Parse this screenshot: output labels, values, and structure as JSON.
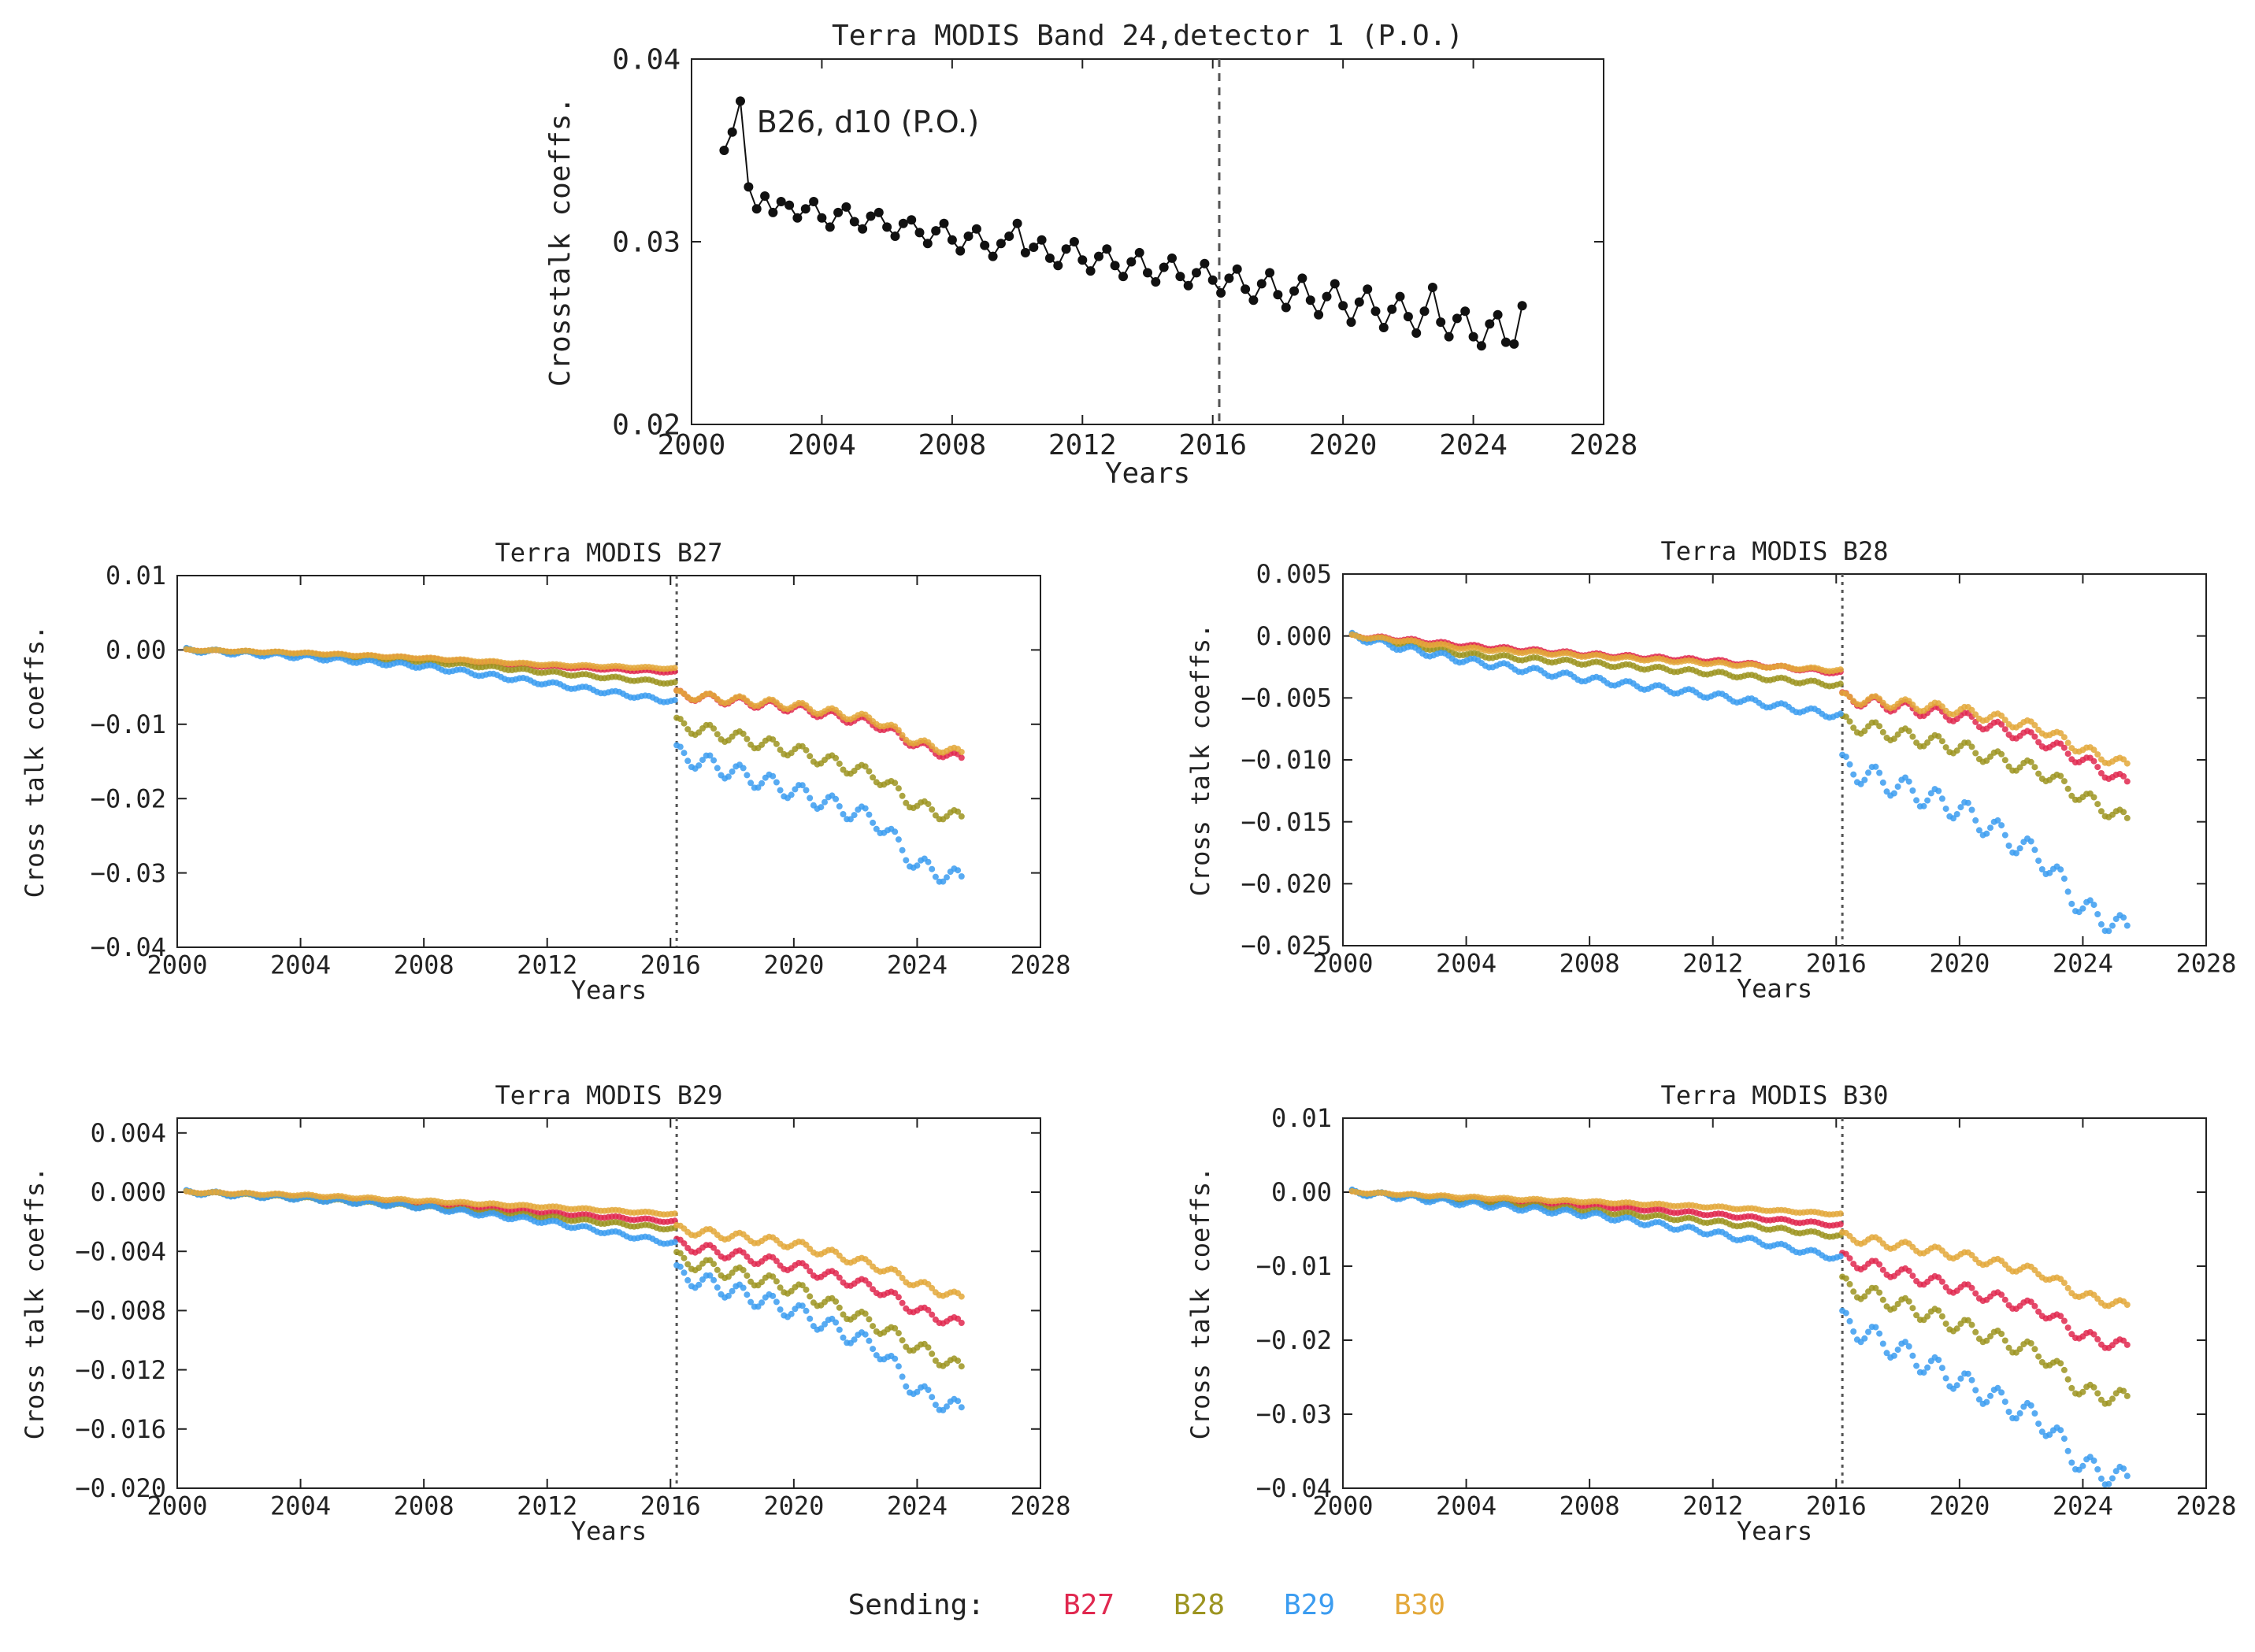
{
  "colors": {
    "B27": "#e0284f",
    "B28": "#9c9420",
    "B29": "#3b9cf0",
    "B30": "#e3a83a",
    "top_series": "#111111",
    "axis": "#222222",
    "grid": "#cfcfcf"
  },
  "legend": {
    "label": "Sending:",
    "items": [
      {
        "name": "B27",
        "color": "#e0284f"
      },
      {
        "name": "B28",
        "color": "#9c9420"
      },
      {
        "name": "B29",
        "color": "#3b9cf0"
      },
      {
        "name": "B30",
        "color": "#e3a83a"
      }
    ]
  },
  "chart_data": [
    {
      "type": "line",
      "title": "Terra MODIS Band 24,detector 1 (P.O.)",
      "xlabel": "Years",
      "ylabel": "Crosstalk coeffs.",
      "xlim": [
        2000,
        2028
      ],
      "ylim": [
        0.02,
        0.04
      ],
      "xticks": [
        "2000",
        "2004",
        "2008",
        "2012",
        "2016",
        "2020",
        "2024",
        "2028"
      ],
      "yticks": [
        "0.02",
        "0.03",
        "0.04"
      ],
      "vline": 2016.2,
      "annotation": "B26, d10 (P.O.)",
      "series": [
        {
          "name": "B26, d10 (P.O.)",
          "color": "#111111",
          "x": [
            2001.0,
            2001.25,
            2001.5,
            2001.75,
            2002.0,
            2002.25,
            2002.5,
            2002.75,
            2003.0,
            2003.25,
            2003.5,
            2003.75,
            2004.0,
            2004.25,
            2004.5,
            2004.75,
            2005.0,
            2005.25,
            2005.5,
            2005.75,
            2006.0,
            2006.25,
            2006.5,
            2006.75,
            2007.0,
            2007.25,
            2007.5,
            2007.75,
            2008.0,
            2008.25,
            2008.5,
            2008.75,
            2009.0,
            2009.25,
            2009.5,
            2009.75,
            2010.0,
            2010.25,
            2010.5,
            2010.75,
            2011.0,
            2011.25,
            2011.5,
            2011.75,
            2012.0,
            2012.25,
            2012.5,
            2012.75,
            2013.0,
            2013.25,
            2013.5,
            2013.75,
            2014.0,
            2014.25,
            2014.5,
            2014.75,
            2015.0,
            2015.25,
            2015.5,
            2015.75,
            2016.0,
            2016.25,
            2016.5,
            2016.75,
            2017.0,
            2017.25,
            2017.5,
            2017.75,
            2018.0,
            2018.25,
            2018.5,
            2018.75,
            2019.0,
            2019.25,
            2019.5,
            2019.75,
            2020.0,
            2020.25,
            2020.5,
            2020.75,
            2021.0,
            2021.25,
            2021.5,
            2021.75,
            2022.0,
            2022.25,
            2022.5,
            2022.75,
            2023.0,
            2023.25,
            2023.5,
            2023.75,
            2024.0,
            2024.25,
            2024.5,
            2024.75,
            2025.0,
            2025.25,
            2025.5
          ],
          "y": [
            0.035,
            0.036,
            0.0377,
            0.033,
            0.0318,
            0.0325,
            0.0316,
            0.0322,
            0.032,
            0.0313,
            0.0318,
            0.0322,
            0.0313,
            0.0308,
            0.0316,
            0.0319,
            0.0311,
            0.0307,
            0.0314,
            0.0316,
            0.0308,
            0.0303,
            0.031,
            0.0312,
            0.0305,
            0.0299,
            0.0306,
            0.031,
            0.0301,
            0.0295,
            0.0303,
            0.0307,
            0.0298,
            0.0292,
            0.0299,
            0.0303,
            0.031,
            0.0294,
            0.0297,
            0.0301,
            0.0291,
            0.0287,
            0.0296,
            0.03,
            0.029,
            0.0284,
            0.0292,
            0.0296,
            0.0287,
            0.0281,
            0.0289,
            0.0294,
            0.0283,
            0.0278,
            0.0286,
            0.0291,
            0.0281,
            0.0276,
            0.0283,
            0.0288,
            0.0279,
            0.0272,
            0.028,
            0.0285,
            0.0274,
            0.0268,
            0.0277,
            0.0283,
            0.0271,
            0.0264,
            0.0273,
            0.028,
            0.0268,
            0.026,
            0.027,
            0.0277,
            0.0265,
            0.0256,
            0.0267,
            0.0274,
            0.0262,
            0.0253,
            0.0263,
            0.027,
            0.0259,
            0.025,
            0.0262,
            0.0275,
            0.0256,
            0.0248,
            0.0258,
            0.0262,
            0.0248,
            0.0243,
            0.0255,
            0.026,
            0.0245,
            0.0244,
            0.0265
          ]
        }
      ]
    },
    {
      "type": "scatter",
      "title": "Terra MODIS B27",
      "xlabel": "Years",
      "ylabel": "Cross talk coeffs.",
      "xlim": [
        2000,
        2028
      ],
      "ylim": [
        -0.04,
        0.01
      ],
      "xticks": [
        "2000",
        "2004",
        "2008",
        "2012",
        "2016",
        "2020",
        "2024",
        "2028"
      ],
      "yticks": [
        "0.01",
        "0.00",
        "−0.01",
        "−0.02",
        "−0.03",
        "−0.04"
      ],
      "vline": 2016.2,
      "pre_x": [
        2000.3,
        2004,
        2008,
        2012,
        2016.2
      ],
      "post_x": [
        2016.2,
        2020,
        2022.7,
        2024,
        2025.5
      ],
      "series": [
        {
          "name": "B27",
          "color": "#e0284f",
          "pre_y": [
            0.0,
            -0.0005,
            -0.0012,
            -0.0022,
            -0.003
          ],
          "post_y": [
            -0.006,
            -0.0078,
            -0.01,
            -0.0128,
            -0.0148
          ]
        },
        {
          "name": "B28",
          "color": "#9c9420",
          "pre_y": [
            0.0,
            -0.0006,
            -0.0015,
            -0.003,
            -0.0045
          ],
          "post_y": [
            -0.01,
            -0.0135,
            -0.017,
            -0.021,
            -0.0228
          ]
        },
        {
          "name": "B29",
          "color": "#3b9cf0",
          "pre_y": [
            0.0,
            -0.0009,
            -0.0022,
            -0.0045,
            -0.007
          ],
          "post_y": [
            -0.014,
            -0.019,
            -0.023,
            -0.029,
            -0.031
          ]
        },
        {
          "name": "B30",
          "color": "#e3a83a",
          "pre_y": [
            0.0,
            -0.0004,
            -0.0011,
            -0.002,
            -0.0025
          ],
          "post_y": [
            -0.006,
            -0.0075,
            -0.0095,
            -0.0125,
            -0.014
          ]
        }
      ]
    },
    {
      "type": "scatter",
      "title": "Terra MODIS B28",
      "xlabel": "Years",
      "ylabel": "Cross talk coeffs.",
      "xlim": [
        2000,
        2028
      ],
      "ylim": [
        -0.025,
        0.005
      ],
      "xticks": [
        "2000",
        "2004",
        "2008",
        "2012",
        "2016",
        "2020",
        "2024",
        "2028"
      ],
      "yticks": [
        "0.005",
        "0.000",
        "−0.005",
        "−0.010",
        "−0.015",
        "−0.020",
        "−0.025"
      ],
      "vline": 2016.2,
      "pre_x": [
        2000.3,
        2002,
        2004,
        2008,
        2012,
        2016.2
      ],
      "post_x": [
        2016.2,
        2020,
        2022.7,
        2024,
        2025.5
      ],
      "series": [
        {
          "name": "B27",
          "color": "#e0284f",
          "pre_y": [
            0.0,
            -0.0003,
            -0.0008,
            -0.0015,
            -0.002,
            -0.003
          ],
          "post_y": [
            -0.005,
            -0.0065,
            -0.0085,
            -0.01,
            -0.012
          ]
        },
        {
          "name": "B28",
          "color": "#9c9420",
          "pre_y": [
            0.0,
            -0.0006,
            -0.0015,
            -0.0022,
            -0.003,
            -0.004
          ],
          "post_y": [
            -0.007,
            -0.009,
            -0.011,
            -0.013,
            -0.015
          ]
        },
        {
          "name": "B29",
          "color": "#3b9cf0",
          "pre_y": [
            0.0,
            -0.001,
            -0.002,
            -0.0035,
            -0.0048,
            -0.0065
          ],
          "post_y": [
            -0.0105,
            -0.014,
            -0.018,
            -0.022,
            -0.0238
          ]
        },
        {
          "name": "B30",
          "color": "#e3a83a",
          "pre_y": [
            0.0,
            -0.0004,
            -0.001,
            -0.0016,
            -0.0022,
            -0.0028
          ],
          "post_y": [
            -0.005,
            -0.006,
            -0.0075,
            -0.0092,
            -0.0105
          ]
        }
      ]
    },
    {
      "type": "scatter",
      "title": "Terra MODIS B29",
      "xlabel": "Years",
      "ylabel": "Cross talk coeffs.",
      "xlim": [
        2000,
        2028
      ],
      "ylim": [
        -0.02,
        0.005
      ],
      "xticks": [
        "2000",
        "2004",
        "2008",
        "2012",
        "2016",
        "2020",
        "2024",
        "2028"
      ],
      "yticks": [
        "0.004",
        "0.000",
        "−0.004",
        "−0.008",
        "−0.012",
        "−0.016",
        "−0.020"
      ],
      "ytick_values": [
        0.004,
        0.0,
        -0.004,
        -0.008,
        -0.012,
        -0.016,
        -0.02
      ],
      "vline": 2016.2,
      "pre_x": [
        2000.3,
        2004,
        2008,
        2012,
        2016.2
      ],
      "post_x": [
        2016.2,
        2020,
        2022.7,
        2024,
        2025.5
      ],
      "series": [
        {
          "name": "B27",
          "color": "#e0284f",
          "pre_y": [
            0.0,
            -0.0003,
            -0.0008,
            -0.0014,
            -0.002
          ],
          "post_y": [
            -0.0035,
            -0.005,
            -0.0065,
            -0.008,
            -0.009
          ]
        },
        {
          "name": "B28",
          "color": "#9c9420",
          "pre_y": [
            0.0,
            -0.0004,
            -0.001,
            -0.0017,
            -0.0025
          ],
          "post_y": [
            -0.0045,
            -0.0065,
            -0.009,
            -0.0105,
            -0.012
          ]
        },
        {
          "name": "B29",
          "color": "#3b9cf0",
          "pre_y": [
            0.0,
            -0.0004,
            -0.001,
            -0.002,
            -0.0035
          ],
          "post_y": [
            -0.0055,
            -0.008,
            -0.0105,
            -0.0135,
            -0.0148
          ]
        },
        {
          "name": "B30",
          "color": "#e3a83a",
          "pre_y": [
            0.0,
            -0.0002,
            -0.0006,
            -0.001,
            -0.0015
          ],
          "post_y": [
            -0.0025,
            -0.0035,
            -0.005,
            -0.0062,
            -0.0072
          ]
        }
      ]
    },
    {
      "type": "scatter",
      "title": "Terra MODIS B30",
      "xlabel": "Years",
      "ylabel": "Cross talk coeffs.",
      "xlim": [
        2000,
        2028
      ],
      "ylim": [
        -0.04,
        0.01
      ],
      "xticks": [
        "2000",
        "2004",
        "2008",
        "2012",
        "2016",
        "2020",
        "2024",
        "2028"
      ],
      "yticks": [
        "0.01",
        "0.00",
        "−0.01",
        "−0.02",
        "−0.03",
        "−0.04"
      ],
      "vline": 2016.2,
      "pre_x": [
        2000.3,
        2004,
        2008,
        2012,
        2016.2
      ],
      "post_x": [
        2016.2,
        2020,
        2022.7,
        2024,
        2025.5
      ],
      "series": [
        {
          "name": "B27",
          "color": "#e0284f",
          "pre_y": [
            0.0,
            -0.001,
            -0.0018,
            -0.003,
            -0.0045
          ],
          "post_y": [
            -0.009,
            -0.013,
            -0.016,
            -0.0195,
            -0.021
          ]
        },
        {
          "name": "B28",
          "color": "#9c9420",
          "pre_y": [
            0.0,
            -0.0012,
            -0.0025,
            -0.004,
            -0.006
          ],
          "post_y": [
            -0.0125,
            -0.018,
            -0.022,
            -0.027,
            -0.028
          ]
        },
        {
          "name": "B29",
          "color": "#3b9cf0",
          "pre_y": [
            0.0,
            -0.0015,
            -0.003,
            -0.0055,
            -0.009
          ],
          "post_y": [
            -0.0175,
            -0.0255,
            -0.031,
            -0.037,
            -0.039
          ]
        },
        {
          "name": "B30",
          "color": "#e3a83a",
          "pre_y": [
            0.0,
            -0.0007,
            -0.0013,
            -0.002,
            -0.003
          ],
          "post_y": [
            -0.006,
            -0.0085,
            -0.011,
            -0.014,
            -0.0155
          ]
        }
      ]
    }
  ]
}
